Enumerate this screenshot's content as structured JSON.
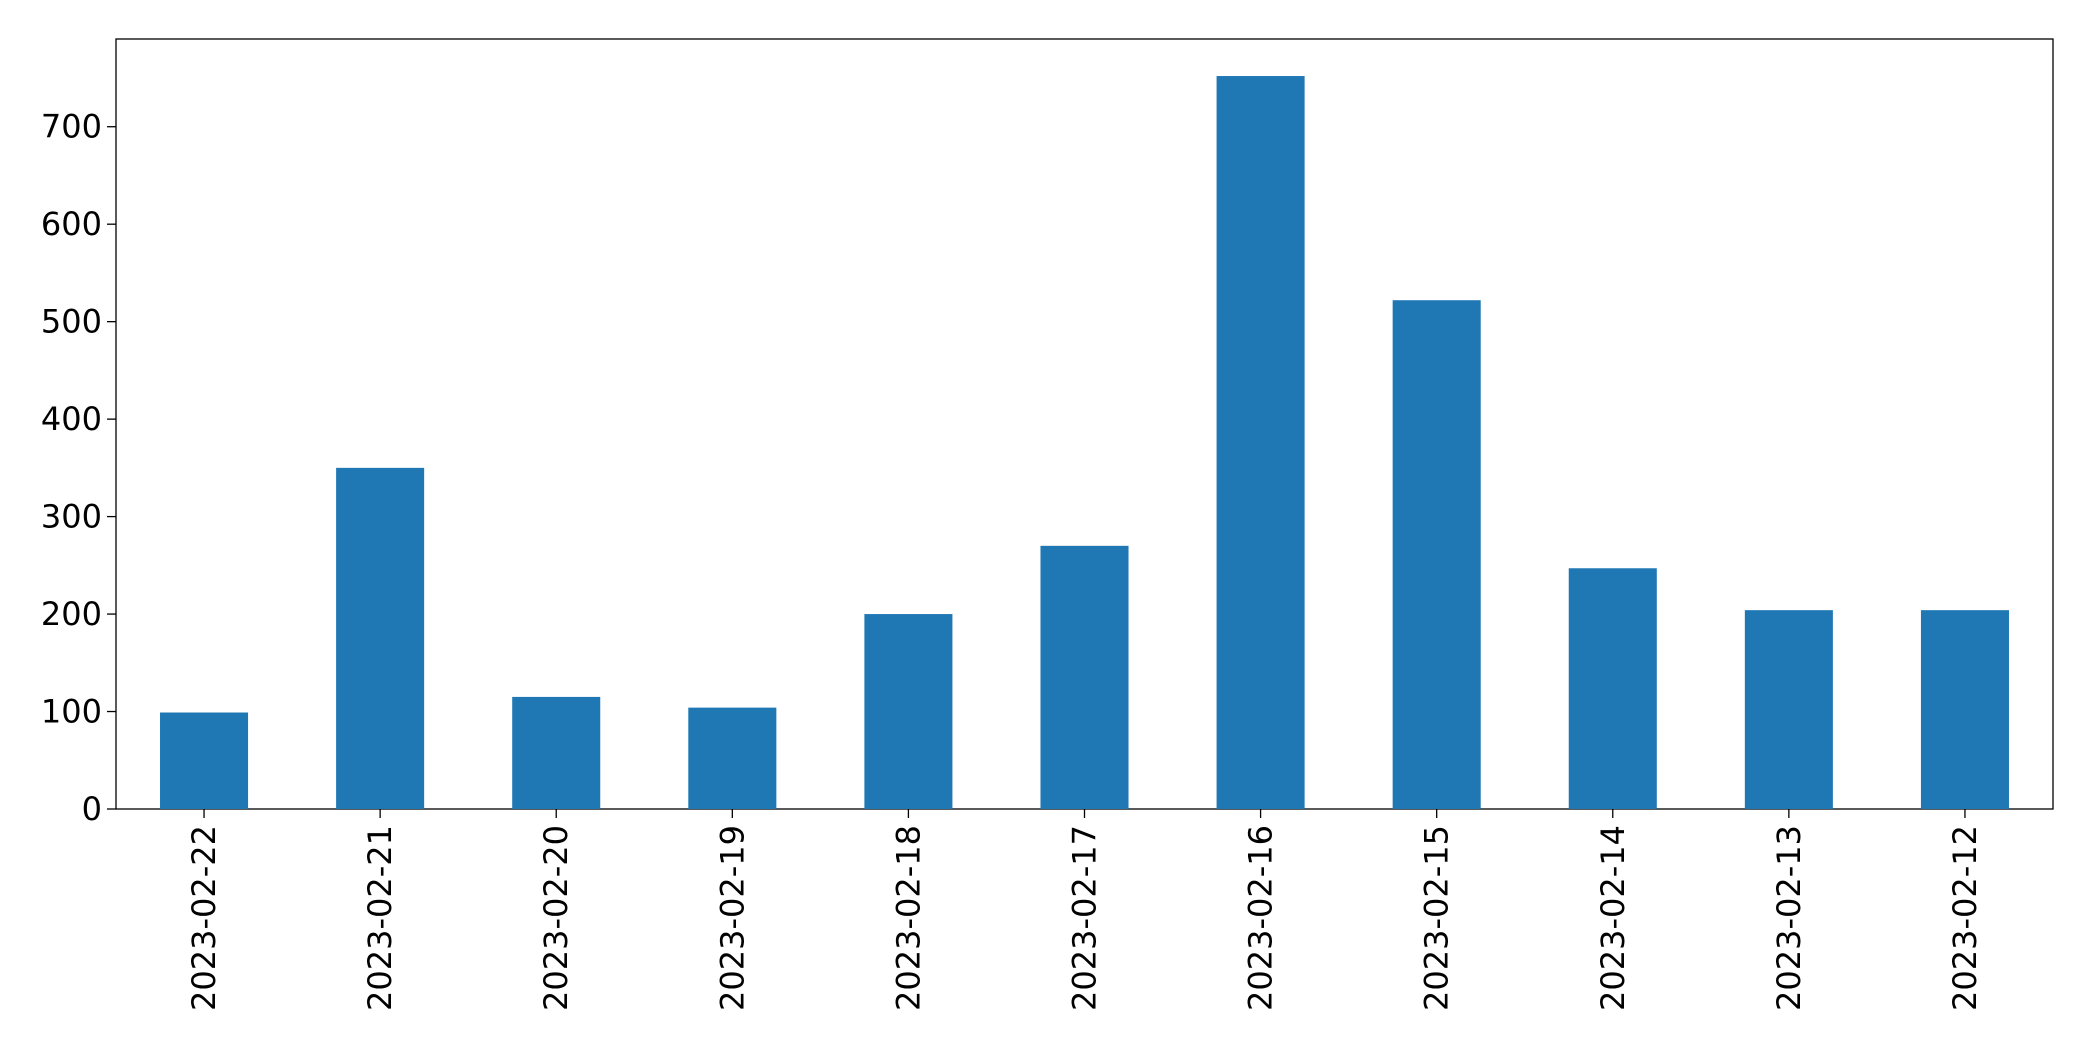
{
  "chart_data": {
    "type": "bar",
    "categories": [
      "2023-02-22",
      "2023-02-21",
      "2023-02-20",
      "2023-02-19",
      "2023-02-18",
      "2023-02-17",
      "2023-02-16",
      "2023-02-15",
      "2023-02-14",
      "2023-02-13",
      "2023-02-12"
    ],
    "values": [
      99,
      350,
      115,
      104,
      200,
      270,
      752,
      522,
      247,
      204,
      204
    ],
    "color": "#1f77b4",
    "ylim": [
      0,
      790
    ],
    "yticks": [
      0,
      100,
      200,
      300,
      400,
      500,
      600,
      700
    ],
    "grid": false
  }
}
